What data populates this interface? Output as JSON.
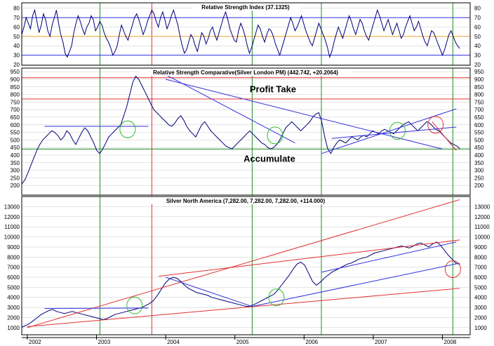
{
  "colors": {
    "background": "#ffffff",
    "frame": "#000000",
    "grid": "#c8c8c8",
    "series": "#00007a",
    "blue_line": "#3030dd",
    "red_line": "#e03030",
    "green_line": "#228b22",
    "orange_line": "#e8a030",
    "green_circle": "#33bb33",
    "red_circle": "#dd3333"
  },
  "chart_data": [
    {
      "id": "rsi",
      "type": "line",
      "title": "Relative Strength Index (37.1325)",
      "ylim": [
        20,
        85
      ],
      "yticks": [
        20,
        30,
        40,
        50,
        60,
        70,
        80
      ],
      "hlines": [
        {
          "y": 30,
          "color": "blue"
        },
        {
          "y": 50,
          "color": "orange"
        },
        {
          "y": 70,
          "color": "blue"
        }
      ],
      "series": [
        {
          "values": [
            52,
            60,
            70,
            64,
            58,
            72,
            78,
            66,
            54,
            62,
            74,
            68,
            56,
            50,
            62,
            70,
            78,
            64,
            52,
            44,
            32,
            28,
            34,
            40,
            54,
            64,
            72,
            66,
            58,
            52,
            60,
            64,
            72,
            68,
            56,
            60,
            66,
            62,
            54,
            48,
            44,
            38,
            30,
            34,
            40,
            52,
            62,
            56,
            50,
            46,
            54,
            62,
            70,
            74,
            68,
            60,
            52,
            58,
            66,
            72,
            78,
            74,
            66,
            60,
            70,
            76,
            68,
            58,
            64,
            72,
            78,
            70,
            62,
            50,
            40,
            32,
            36,
            44,
            52,
            48,
            40,
            34,
            44,
            54,
            50,
            42,
            48,
            56,
            60,
            52,
            46,
            54,
            62,
            70,
            76,
            68,
            58,
            52,
            46,
            44,
            56,
            64,
            58,
            50,
            40,
            32,
            38,
            46,
            54,
            62,
            58,
            50,
            44,
            52,
            58,
            56,
            50,
            42,
            36,
            30,
            38,
            46,
            54,
            62,
            70,
            64,
            56,
            60,
            66,
            72,
            64,
            56,
            50,
            44,
            40,
            48,
            56,
            64,
            58,
            52,
            46,
            38,
            28,
            34,
            44,
            52,
            60,
            54,
            48,
            56,
            64,
            72,
            66,
            58,
            52,
            60,
            68,
            64,
            56,
            50,
            46,
            54,
            62,
            70,
            78,
            72,
            64,
            56,
            62,
            68,
            60,
            52,
            58,
            64,
            56,
            48,
            52,
            60,
            66,
            72,
            64,
            56,
            60,
            66,
            58,
            50,
            44,
            40,
            48,
            56,
            54,
            48,
            42,
            36,
            30,
            36,
            44,
            52,
            56,
            50,
            44,
            40,
            37
          ]
        }
      ]
    },
    {
      "id": "rsc",
      "type": "line",
      "title": "Relative Strength Comparative(Silver London PM) (442.742, +20.2064)",
      "ylim": [
        150,
        960
      ],
      "yticks": [
        200,
        250,
        300,
        350,
        400,
        450,
        500,
        550,
        600,
        650,
        700,
        750,
        800,
        850,
        900,
        950
      ],
      "hlines": [
        {
          "y": 440,
          "color": "green"
        },
        {
          "y": 770,
          "color": "red"
        },
        {
          "y": 910,
          "color": "red"
        }
      ],
      "annotations": [
        {
          "text": "Profit Take",
          "x": 2005.55,
          "y": 815
        },
        {
          "text": "Accumulate",
          "x": 2005.5,
          "y": 355
        }
      ],
      "trendlines": [
        {
          "from": [
            2002.25,
            590
          ],
          "to": [
            2003.75,
            590
          ],
          "color": "blue"
        },
        {
          "from": [
            2004.0,
            900
          ],
          "to": [
            2008.0,
            440
          ],
          "color": "blue"
        },
        {
          "from": [
            2004.0,
            930
          ],
          "to": [
            2005.87,
            480
          ],
          "color": "blue"
        },
        {
          "from": [
            2006.25,
            410
          ],
          "to": [
            2008.2,
            705
          ],
          "color": "blue"
        },
        {
          "from": [
            2006.4,
            510
          ],
          "to": [
            2008.2,
            585
          ],
          "color": "blue"
        },
        {
          "from": [
            2007.85,
            620
          ],
          "to": [
            2008.2,
            430
          ],
          "color": "red"
        }
      ],
      "circles": [
        {
          "x": 2003.45,
          "y": 570,
          "color": "green"
        },
        {
          "x": 2005.58,
          "y": 530,
          "color": "green"
        },
        {
          "x": 2007.35,
          "y": 560,
          "color": "green"
        },
        {
          "x": 2007.9,
          "y": 600,
          "color": "red"
        }
      ],
      "series": [
        {
          "values": [
            210,
            235,
            280,
            330,
            380,
            430,
            470,
            500,
            520,
            540,
            560,
            550,
            530,
            500,
            520,
            560,
            540,
            500,
            470,
            510,
            550,
            580,
            560,
            520,
            480,
            430,
            410,
            440,
            480,
            520,
            540,
            560,
            580,
            600,
            660,
            720,
            800,
            880,
            920,
            900,
            860,
            820,
            780,
            740,
            700,
            680,
            660,
            640,
            620,
            600,
            590,
            610,
            640,
            660,
            630,
            590,
            560,
            540,
            520,
            560,
            600,
            620,
            590,
            560,
            540,
            520,
            500,
            480,
            460,
            450,
            440,
            460,
            480,
            500,
            520,
            540,
            560,
            540,
            520,
            500,
            480,
            470,
            450,
            440,
            450,
            470,
            500,
            540,
            580,
            600,
            620,
            600,
            580,
            560,
            580,
            600,
            620,
            650,
            670,
            680,
            620,
            520,
            440,
            410,
            450,
            480,
            500,
            490,
            480,
            500,
            520,
            510,
            500,
            520,
            530,
            520,
            540,
            560,
            550,
            540,
            560,
            570,
            560,
            550,
            540,
            560,
            580,
            600,
            610,
            620,
            600,
            580,
            560,
            580,
            600,
            620,
            610,
            590,
            570,
            560,
            540,
            520,
            500,
            480,
            470,
            460,
            443
          ]
        }
      ]
    },
    {
      "id": "price",
      "type": "line",
      "title": "Silver North America (7,282.00, 7,282.00, 7,282.00, +114.000)",
      "ylim": [
        500,
        13800
      ],
      "yticks": [
        1000,
        2000,
        3000,
        4000,
        5000,
        6000,
        7000,
        8000,
        9000,
        10000,
        11000,
        12000,
        13000
      ],
      "trendlines": [
        {
          "from": [
            2002.0,
            1000
          ],
          "to": [
            2008.25,
            13700
          ],
          "color": "red"
        },
        {
          "from": [
            2002.0,
            1100
          ],
          "to": [
            2008.25,
            4900
          ],
          "color": "red"
        },
        {
          "from": [
            2003.9,
            6100
          ],
          "to": [
            2008.25,
            9700
          ],
          "color": "red"
        },
        {
          "from": [
            2002.25,
            2900
          ],
          "to": [
            2003.75,
            2950
          ],
          "color": "blue"
        },
        {
          "from": [
            2004.0,
            6000
          ],
          "to": [
            2005.25,
            3100
          ],
          "color": "blue"
        },
        {
          "from": [
            2005.25,
            3100
          ],
          "to": [
            2008.25,
            7400
          ],
          "color": "blue"
        },
        {
          "from": [
            2006.25,
            6500
          ],
          "to": [
            2008.2,
            9500
          ],
          "color": "blue"
        }
      ],
      "circles": [
        {
          "x": 2003.55,
          "y": 3200,
          "color": "green"
        },
        {
          "x": 2005.6,
          "y": 4000,
          "color": "green"
        },
        {
          "x": 2008.15,
          "y": 6800,
          "color": "red"
        }
      ],
      "series": [
        {
          "values": [
            1050,
            1200,
            1400,
            1700,
            2000,
            2300,
            2500,
            2700,
            2800,
            2600,
            2500,
            2400,
            2500,
            2600,
            2500,
            2400,
            2300,
            2200,
            2100,
            2000,
            1900,
            1800,
            1900,
            2100,
            2300,
            2400,
            2500,
            2600,
            2700,
            2800,
            2900,
            3000,
            3200,
            3400,
            3700,
            4200,
            4800,
            5400,
            5800,
            6000,
            5900,
            5600,
            5200,
            4900,
            4700,
            4500,
            4400,
            4300,
            4200,
            4000,
            3900,
            3800,
            3700,
            3600,
            3500,
            3400,
            3300,
            3200,
            3100,
            3150,
            3300,
            3500,
            3700,
            3900,
            4100,
            4300,
            4700,
            5200,
            5700,
            6200,
            6800,
            7300,
            7500,
            7200,
            6400,
            5600,
            5200,
            5500,
            5900,
            6200,
            6500,
            6700,
            6900,
            7100,
            7300,
            7400,
            7600,
            7800,
            7900,
            8000,
            8200,
            8400,
            8500,
            8600,
            8700,
            8800,
            8900,
            9000,
            9100,
            9000,
            8900,
            9100,
            9300,
            9400,
            9200,
            9000,
            9300,
            9500,
            9200,
            8700,
            8200,
            7800,
            7400,
            7282
          ]
        }
      ]
    }
  ],
  "x_axis": {
    "range": [
      2001.92,
      2008.4
    ],
    "labels": [
      "2002",
      "2003",
      "2004",
      "2005",
      "2006",
      "2007",
      "2008"
    ],
    "label_positions": [
      2002,
      2003,
      2004,
      2005,
      2006,
      2007,
      2008
    ],
    "vlines": [
      {
        "x": 2003.05,
        "color": "green"
      },
      {
        "x": 2003.8,
        "color": "red"
      },
      {
        "x": 2005.25,
        "color": "green"
      },
      {
        "x": 2006.25,
        "color": "green"
      },
      {
        "x": 2008.15,
        "color": "green"
      }
    ]
  }
}
